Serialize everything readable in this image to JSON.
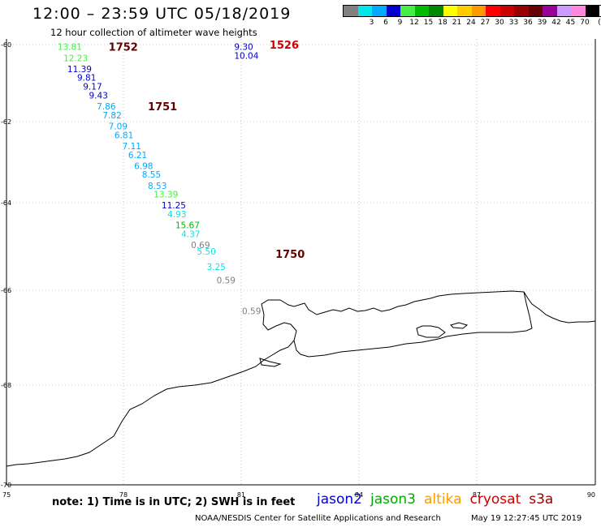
{
  "header": {
    "title": "12:00 – 23:59 UTC 05/18/2019",
    "subtitle": "12 hour collection of altimeter wave heights"
  },
  "legend": {
    "unit": "(ft)",
    "bins": [
      {
        "label": "",
        "color": "#808080"
      },
      {
        "label": "3",
        "color": "#00e8e8"
      },
      {
        "label": "6",
        "color": "#00aaff"
      },
      {
        "label": "9",
        "color": "#0000d0"
      },
      {
        "label": "12",
        "color": "#44ee44"
      },
      {
        "label": "15",
        "color": "#00bb00"
      },
      {
        "label": "18",
        "color": "#008800"
      },
      {
        "label": "21",
        "color": "#ffff00"
      },
      {
        "label": "24",
        "color": "#ffcc00"
      },
      {
        "label": "27",
        "color": "#ff9900"
      },
      {
        "label": "30",
        "color": "#ff0000"
      },
      {
        "label": "33",
        "color": "#cc0000"
      },
      {
        "label": "36",
        "color": "#990000"
      },
      {
        "label": "39",
        "color": "#660000"
      },
      {
        "label": "42",
        "color": "#990099"
      },
      {
        "label": "45",
        "color": "#cc99ff"
      },
      {
        "label": "70",
        "color": "#ff88dd"
      },
      {
        "label": "",
        "color": "#000000"
      }
    ]
  },
  "axes": {
    "lat_labels": [
      "-60",
      "-62",
      "-64",
      "-66",
      "-68",
      "-70"
    ],
    "lon_labels": [
      "75",
      "78",
      "81",
      "84",
      "87",
      "90"
    ]
  },
  "observations": [
    {
      "lon": 76.3,
      "lat": -60.05,
      "swh": "13.81",
      "color": "#44ee44"
    },
    {
      "lon": 76.45,
      "lat": -60.3,
      "swh": "12.23",
      "color": "#44ee44"
    },
    {
      "lon": 76.55,
      "lat": -60.55,
      "swh": "11.39",
      "color": "#0000d0"
    },
    {
      "lon": 76.8,
      "lat": -60.75,
      "swh": "9.81",
      "color": "#0000d0"
    },
    {
      "lon": 76.95,
      "lat": -60.95,
      "swh": "9.17",
      "color": "#0000d0"
    },
    {
      "lon": 77.1,
      "lat": -61.15,
      "swh": "9.43",
      "color": "#0000d0"
    },
    {
      "lon": 77.3,
      "lat": -61.4,
      "swh": "7.86",
      "color": "#00aaff"
    },
    {
      "lon": 77.45,
      "lat": -61.6,
      "swh": "7.82",
      "color": "#00aaff"
    },
    {
      "lon": 77.6,
      "lat": -61.85,
      "swh": "7.09",
      "color": "#00aaff"
    },
    {
      "lon": 77.75,
      "lat": -62.05,
      "swh": "6.81",
      "color": "#00aaff"
    },
    {
      "lon": 77.95,
      "lat": -62.3,
      "swh": "7.11",
      "color": "#00aaff"
    },
    {
      "lon": 78.1,
      "lat": -62.5,
      "swh": "6.21",
      "color": "#00aaff"
    },
    {
      "lon": 78.25,
      "lat": -62.75,
      "swh": "6.98",
      "color": "#00aaff"
    },
    {
      "lon": 78.45,
      "lat": -62.95,
      "swh": "8.55",
      "color": "#00aaff"
    },
    {
      "lon": 78.6,
      "lat": -63.2,
      "swh": "8.53",
      "color": "#00aaff"
    },
    {
      "lon": 78.75,
      "lat": -63.4,
      "swh": "13.39",
      "color": "#44ee44"
    },
    {
      "lon": 78.95,
      "lat": -63.65,
      "swh": "11.25",
      "color": "#0000d0"
    },
    {
      "lon": 79.1,
      "lat": -63.85,
      "swh": "4.93",
      "color": "#00e8e8"
    },
    {
      "lon": 79.3,
      "lat": -64.1,
      "swh": "15.67",
      "color": "#00bb00"
    },
    {
      "lon": 79.45,
      "lat": -64.3,
      "swh": "4.37",
      "color": "#00e8e8"
    },
    {
      "lon": 79.7,
      "lat": -64.55,
      "swh": "0.69",
      "color": "#808080"
    },
    {
      "lon": 79.85,
      "lat": -64.7,
      "swh": "5.50",
      "color": "#00e8e8"
    },
    {
      "lon": 80.1,
      "lat": -65.05,
      "swh": "3.25",
      "color": "#00e8e8"
    },
    {
      "lon": 80.35,
      "lat": -65.35,
      "swh": "0.59",
      "color": "#808080"
    },
    {
      "lon": 81.0,
      "lat": -66.05,
      "swh": "0.59",
      "color": "#808080"
    },
    {
      "lon": 80.8,
      "lat": -60.05,
      "swh": "9.30",
      "color": "#0000d0"
    },
    {
      "lon": 80.8,
      "lat": -60.25,
      "swh": "10.04",
      "color": "#0000d0"
    }
  ],
  "time_markers": [
    {
      "lon": 77.6,
      "lat": -60.05,
      "text": "1752",
      "color": "#660000"
    },
    {
      "lon": 78.6,
      "lat": -61.4,
      "text": "1751",
      "color": "#660000"
    },
    {
      "lon": 81.7,
      "lat": -60.0,
      "text": "1526",
      "color": "#cc0000"
    },
    {
      "lon": 81.85,
      "lat": -64.75,
      "text": "1750",
      "color": "#660000"
    }
  ],
  "footer": {
    "note": "note: 1) Time is in UTC; 2) SWH is in feet",
    "satellites": [
      {
        "name": "jason2",
        "color": "#0000d0"
      },
      {
        "name": "jason3",
        "color": "#00aa00"
      },
      {
        "name": "altika",
        "color": "#ff9900"
      },
      {
        "name": "cryosat",
        "color": "#cc0000"
      },
      {
        "name": "s3a",
        "color": "#990000"
      }
    ],
    "credit": "NOAA/NESDIS Center for Satellite Applications and Research",
    "timestamp": "May 19 12:27:45 UTC 2019"
  }
}
